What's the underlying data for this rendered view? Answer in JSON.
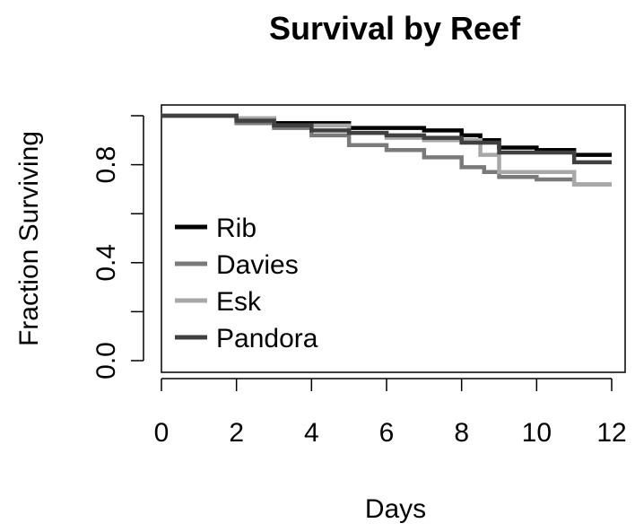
{
  "chart_data": {
    "type": "line",
    "title": "Survival by Reef",
    "xlabel": "Days",
    "ylabel": "Fraction Surviving",
    "xlim": [
      0,
      12
    ],
    "ylim": [
      0,
      1
    ],
    "x_ticks": [
      "0",
      "2",
      "4",
      "6",
      "8",
      "10",
      "12"
    ],
    "y_ticks": [
      {
        "value": 0.0,
        "label": "0.0"
      },
      {
        "value": 0.2,
        "label": ""
      },
      {
        "value": 0.4,
        "label": "0.4"
      },
      {
        "value": 0.6,
        "label": ""
      },
      {
        "value": 0.8,
        "label": "0.8"
      },
      {
        "value": 1.0,
        "label": ""
      }
    ],
    "grid": false,
    "legend_position": "left",
    "step": true,
    "series": [
      {
        "name": "Rib",
        "color": "#000000",
        "x": [
          0,
          2,
          3,
          5,
          7,
          8,
          8.5,
          9,
          10,
          11,
          12
        ],
        "y": [
          1.0,
          0.99,
          0.97,
          0.95,
          0.94,
          0.92,
          0.9,
          0.87,
          0.86,
          0.84,
          0.84
        ]
      },
      {
        "name": "Davies",
        "color": "#7a7a7a",
        "x": [
          0,
          2,
          3,
          4,
          5,
          6,
          7,
          8,
          8.6,
          9,
          10,
          11,
          12
        ],
        "y": [
          1.0,
          0.97,
          0.95,
          0.92,
          0.88,
          0.86,
          0.83,
          0.79,
          0.77,
          0.75,
          0.74,
          0.72,
          0.72
        ]
      },
      {
        "name": "Esk",
        "color": "#a8a8a8",
        "x": [
          0,
          2,
          3,
          5,
          6,
          7,
          8.5,
          9,
          11,
          12
        ],
        "y": [
          1.0,
          0.99,
          0.96,
          0.93,
          0.91,
          0.9,
          0.84,
          0.77,
          0.72,
          0.72
        ]
      },
      {
        "name": "Pandora",
        "color": "#404040",
        "x": [
          0,
          2,
          3,
          4,
          5,
          6,
          7,
          8,
          9,
          11,
          12
        ],
        "y": [
          1.0,
          0.98,
          0.96,
          0.94,
          0.93,
          0.92,
          0.91,
          0.89,
          0.85,
          0.81,
          0.81
        ]
      }
    ]
  }
}
